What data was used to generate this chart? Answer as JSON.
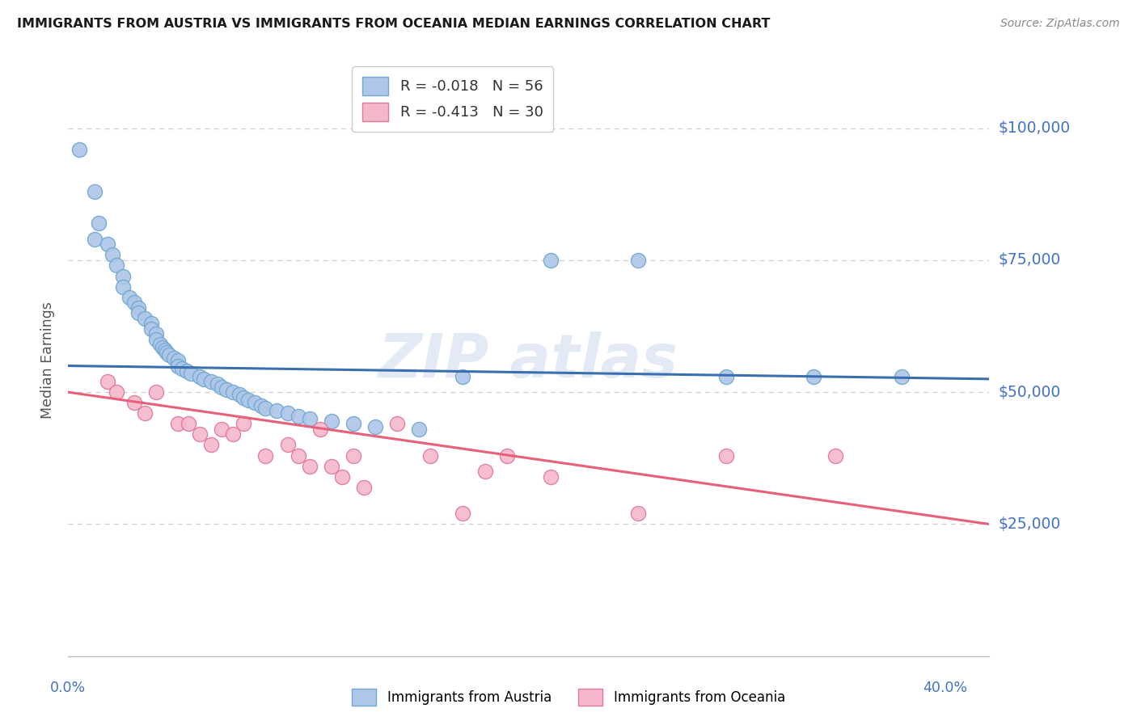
{
  "title": "IMMIGRANTS FROM AUSTRIA VS IMMIGRANTS FROM OCEANIA MEDIAN EARNINGS CORRELATION CHART",
  "source": "Source: ZipAtlas.com",
  "ylabel": "Median Earnings",
  "ylim": [
    0,
    112000
  ],
  "xlim": [
    0.0,
    0.42
  ],
  "austria_r": "-0.018",
  "austria_n": "56",
  "oceania_r": "-0.413",
  "oceania_n": "30",
  "austria_color": "#aec6e8",
  "austria_edge_color": "#6fa8d0",
  "austria_line_color": "#3b6faf",
  "oceania_color": "#f5b8cb",
  "oceania_edge_color": "#e07898",
  "oceania_line_color": "#e8607a",
  "austria_x": [
    0.005,
    0.012,
    0.014,
    0.012,
    0.018,
    0.02,
    0.022,
    0.025,
    0.025,
    0.028,
    0.03,
    0.032,
    0.032,
    0.035,
    0.038,
    0.038,
    0.04,
    0.04,
    0.042,
    0.043,
    0.044,
    0.045,
    0.046,
    0.048,
    0.05,
    0.05,
    0.052,
    0.054,
    0.056,
    0.06,
    0.062,
    0.065,
    0.068,
    0.07,
    0.072,
    0.075,
    0.078,
    0.08,
    0.082,
    0.085,
    0.088,
    0.09,
    0.095,
    0.1,
    0.105,
    0.11,
    0.12,
    0.13,
    0.14,
    0.16,
    0.18,
    0.22,
    0.26,
    0.3,
    0.34,
    0.38
  ],
  "austria_y": [
    96000,
    88000,
    82000,
    79000,
    78000,
    76000,
    74000,
    72000,
    70000,
    68000,
    67000,
    66000,
    65000,
    64000,
    63000,
    62000,
    61000,
    60000,
    59000,
    58500,
    58000,
    57500,
    57000,
    56500,
    56000,
    55000,
    54500,
    54000,
    53500,
    53000,
    52500,
    52000,
    51500,
    51000,
    50500,
    50000,
    49500,
    49000,
    48500,
    48000,
    47500,
    47000,
    46500,
    46000,
    45500,
    45000,
    44500,
    44000,
    43500,
    43000,
    53000,
    75000,
    75000,
    53000,
    53000,
    53000
  ],
  "oceania_x": [
    0.018,
    0.022,
    0.03,
    0.035,
    0.04,
    0.05,
    0.055,
    0.06,
    0.065,
    0.07,
    0.075,
    0.08,
    0.09,
    0.1,
    0.105,
    0.11,
    0.115,
    0.12,
    0.125,
    0.13,
    0.135,
    0.15,
    0.165,
    0.18,
    0.19,
    0.2,
    0.22,
    0.26,
    0.3,
    0.35
  ],
  "oceania_y": [
    52000,
    50000,
    48000,
    46000,
    50000,
    44000,
    44000,
    42000,
    40000,
    43000,
    42000,
    44000,
    38000,
    40000,
    38000,
    36000,
    43000,
    36000,
    34000,
    38000,
    32000,
    44000,
    38000,
    27000,
    35000,
    38000,
    34000,
    27000,
    38000,
    38000
  ],
  "austria_trend_x": [
    0.0,
    0.42
  ],
  "austria_trend_y": [
    55000,
    52500
  ],
  "oceania_trend_x": [
    0.0,
    0.42
  ],
  "oceania_trend_y": [
    50000,
    25000
  ],
  "background_color": "#ffffff",
  "grid_color": "#d0d0d0",
  "title_color": "#1a1a1a",
  "right_label_color": "#4472c4",
  "ylabel_color": "#555555"
}
